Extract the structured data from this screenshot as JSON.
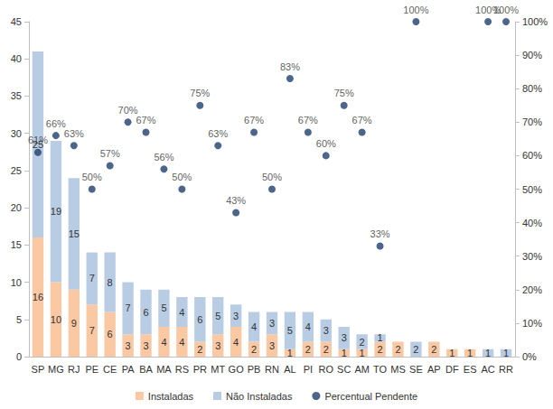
{
  "chart_data": {
    "type": "bar",
    "stacked": true,
    "data_labels": true,
    "grid": false,
    "legend": "bottom",
    "categories": [
      "SP",
      "MG",
      "RJ",
      "PE",
      "CE",
      "PA",
      "BA",
      "MA",
      "RS",
      "PR",
      "MT",
      "GO",
      "PB",
      "RN",
      "AL",
      "PI",
      "RO",
      "SC",
      "AM",
      "TO",
      "MS",
      "SE",
      "AP",
      "DF",
      "ES",
      "AC",
      "RR"
    ],
    "series": [
      {
        "name": "Instaladas",
        "color": "#fac8a2",
        "values": [
          16,
          10,
          9,
          7,
          6,
          3,
          3,
          4,
          4,
          2,
          3,
          4,
          2,
          3,
          1,
          2,
          2,
          1,
          1,
          2,
          2,
          0,
          2,
          1,
          1,
          0,
          0
        ]
      },
      {
        "name": "Não Instaladas",
        "color": "#b8cce4",
        "values": [
          25,
          19,
          15,
          7,
          8,
          7,
          6,
          5,
          4,
          6,
          5,
          3,
          4,
          3,
          5,
          4,
          3,
          3,
          2,
          1,
          0,
          2,
          0,
          0,
          0,
          1,
          1
        ]
      },
      {
        "name": "Percentual Pendente",
        "type": "scatter",
        "axis": "y2",
        "color": "#1f3f6e",
        "marker": "circle",
        "values": [
          61,
          66,
          63,
          50,
          57,
          70,
          67,
          56,
          50,
          75,
          63,
          43,
          67,
          50,
          83,
          67,
          60,
          75,
          67,
          33,
          null,
          100,
          null,
          null,
          null,
          100,
          100
        ],
        "value_labels": [
          "61%",
          "66%",
          "63%",
          "50%",
          "57%",
          "70%",
          "67%",
          "56%",
          "50%",
          "75%",
          "63%",
          "43%",
          "67%",
          "50%",
          "83%",
          "67%",
          "60%",
          "75%",
          "67%",
          "33%",
          null,
          "100%",
          null,
          null,
          null,
          "100%",
          "100%"
        ]
      }
    ],
    "ylim": [
      0,
      45
    ],
    "yticks": [
      0,
      5,
      10,
      15,
      20,
      25,
      30,
      35,
      40,
      45
    ],
    "y2lim": [
      0,
      100
    ],
    "y2ticks": [
      {
        "value": 0,
        "label": "0%"
      },
      {
        "value": 10,
        "label": "10%"
      },
      {
        "value": 20,
        "label": "20%"
      },
      {
        "value": 30,
        "label": "30%"
      },
      {
        "value": 40,
        "label": "40%"
      },
      {
        "value": 50,
        "label": "50%"
      },
      {
        "value": 60,
        "label": "60%"
      },
      {
        "value": 70,
        "label": "70%"
      },
      {
        "value": 80,
        "label": "80%"
      },
      {
        "value": 90,
        "label": "90%"
      },
      {
        "value": 100,
        "label": "100%"
      }
    ]
  }
}
